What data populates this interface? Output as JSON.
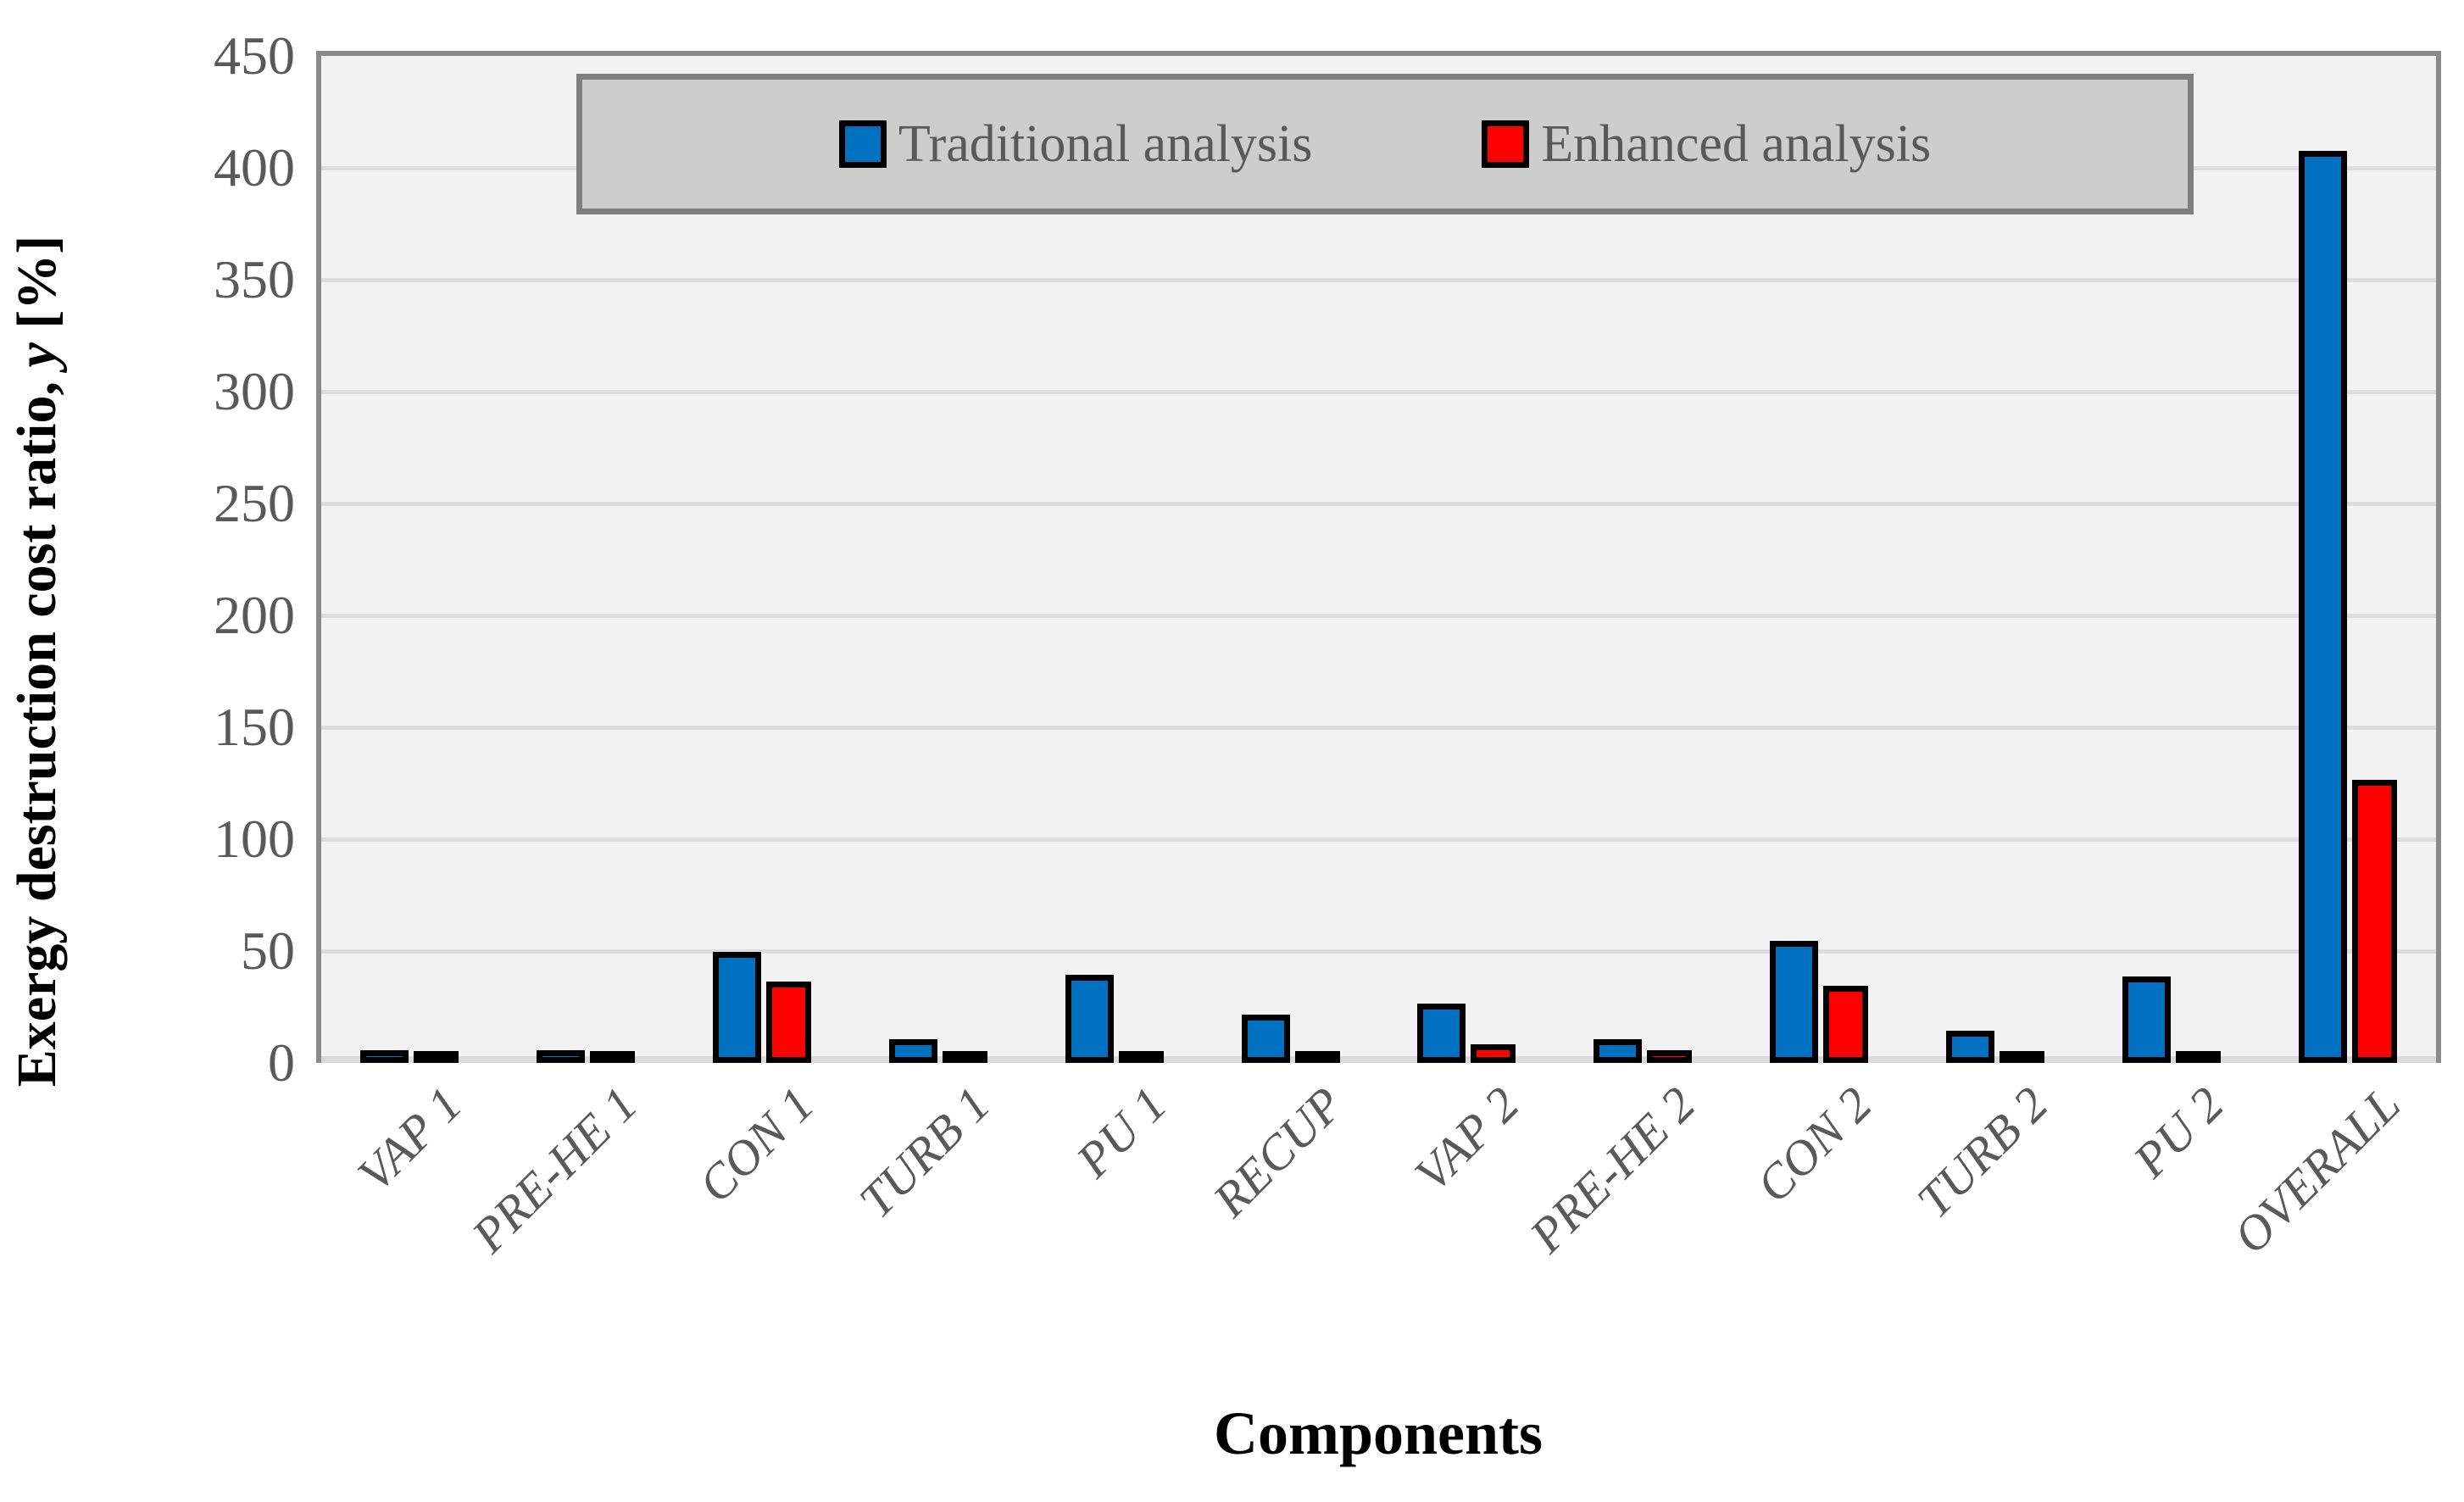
{
  "chart_data": {
    "type": "bar",
    "title": "",
    "xlabel": "Components",
    "ylabel": "Exergy destruction cost ratio, y [%]",
    "ylabel_parts": {
      "prefix": "Exergy destruction cost ratio, ",
      "var": "y",
      "suffix": " [%]"
    },
    "categories": [
      "VAP 1",
      "PRE-HE 1",
      "CON 1",
      "TURB 1",
      "PU 1",
      "RECUP",
      "VAP 2",
      "PRE-HE 2",
      "CON 2",
      "TURB 2",
      "PU 2",
      "OVERALL"
    ],
    "series": [
      {
        "name": "Traditional analysis",
        "color": "#0070C0",
        "values": [
          4,
          4,
          48,
          9,
          38,
          20,
          25,
          9,
          53,
          13,
          37,
          406
        ]
      },
      {
        "name": "Enhanced analysis",
        "color": "#FF0000",
        "values": [
          3,
          3,
          35,
          1,
          3,
          2,
          7,
          4,
          33,
          3,
          3,
          125
        ]
      }
    ],
    "ylim": [
      0,
      450
    ],
    "ytick_step": 50,
    "ytick_labels": [
      "0",
      "50",
      "100",
      "150",
      "200",
      "250",
      "300",
      "350",
      "400",
      "450"
    ],
    "grid": true,
    "legend_position": "top",
    "colors": {
      "plot_background": "#F2F2F2",
      "gridline": "#DDDDDD",
      "plot_border": "#8A8A8A",
      "baseline": "#D9D9D9",
      "bar_border": "#000000",
      "legend_background": "#CDCDCD",
      "legend_border": "#7F7F7F",
      "tick_text": "#595959",
      "axis_title_text": "#000000"
    }
  }
}
